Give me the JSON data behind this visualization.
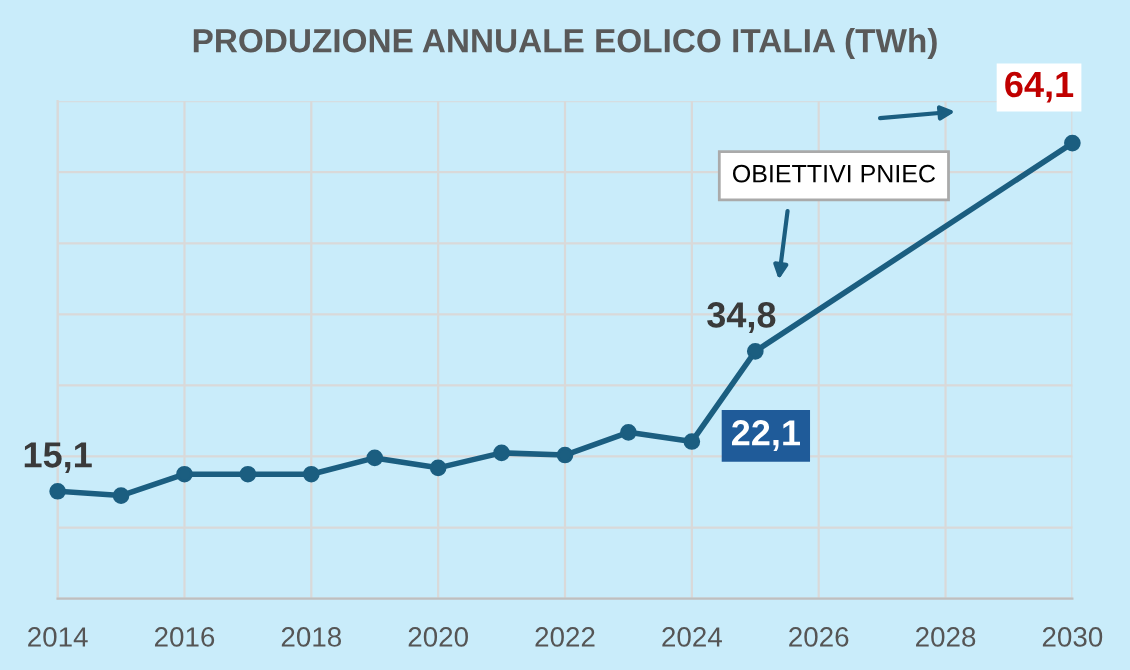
{
  "chart_data": {
    "type": "line",
    "title": "PRODUZIONE ANNUALE EOLICO ITALIA (TWh)",
    "x": [
      2014,
      2015,
      2016,
      2017,
      2018,
      2019,
      2020,
      2021,
      2022,
      2023,
      2024,
      2025,
      2030
    ],
    "series": [
      {
        "color": "#1b5e80",
        "values": [
          15.1,
          14.5,
          17.5,
          17.5,
          17.5,
          19.8,
          18.4,
          20.5,
          20.2,
          23.4,
          22.1,
          34.8,
          64.1
        ],
        "value_labels": [
          "15,1",
          null,
          null,
          null,
          null,
          null,
          null,
          null,
          null,
          null,
          "22,1",
          "34,8",
          "64,1"
        ]
      }
    ],
    "xlim": [
      2014,
      2030
    ],
    "xticks": [
      2014,
      2016,
      2018,
      2020,
      2022,
      2024,
      2026,
      2028,
      2030
    ],
    "ylim": [
      0,
      70
    ],
    "yticks": [
      {
        "value": 0,
        "label": null
      },
      {
        "value": 10,
        "label": null
      },
      {
        "value": 20,
        "label": null
      },
      {
        "value": 30,
        "label": null
      },
      {
        "value": 40,
        "label": null
      },
      {
        "value": 50,
        "label": null
      },
      {
        "value": 60,
        "label": null
      },
      {
        "value": 70,
        "label": null
      }
    ],
    "tick_labels": "x",
    "grid": true,
    "marker": "circle",
    "line_style": "solid",
    "annotations": [
      "OBIETTIVI PNIEC"
    ]
  }
}
